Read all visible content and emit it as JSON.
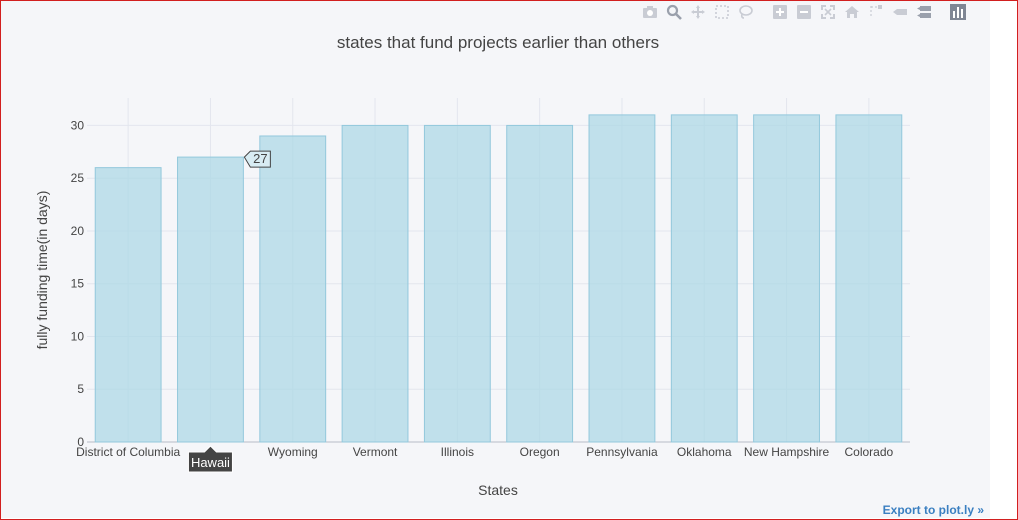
{
  "modebar": {
    "icons": [
      "camera-icon",
      "zoom-icon",
      "pan-icon",
      "box-select-icon",
      "lasso-select-icon",
      "zoom-in-icon",
      "zoom-out-icon",
      "autoscale-icon",
      "reset-axes-icon",
      "spike-lines-icon",
      "hover-closest-icon",
      "hover-compare-icon",
      "plotly-logo-icon"
    ]
  },
  "export_link": "Export to plot.ly »",
  "colors": {
    "bar_fill": "#add8e6",
    "bar_stroke": "#93c8dc",
    "grid": "#e3e6ee",
    "axis_text": "#444444",
    "tooltip_bg": "#444444",
    "plot_bg": "#f5f6f9"
  },
  "chart_data": {
    "type": "bar",
    "title": "states that fund projects earlier than others",
    "xlabel": "States",
    "ylabel": "fully funding time(in days)",
    "categories": [
      "District of Columbia",
      "Hawaii",
      "Wyoming",
      "Vermont",
      "Illinois",
      "Oregon",
      "Pennsylvania",
      "Oklahoma",
      "New Hampshire",
      "Colorado"
    ],
    "values": [
      26,
      27,
      29,
      30,
      30,
      30,
      31,
      31,
      31,
      31
    ],
    "ylim": [
      0,
      32.6
    ],
    "yticks": [
      0,
      5,
      10,
      15,
      20,
      25,
      30
    ],
    "grid": true,
    "hover": {
      "category": "Hawaii",
      "value_label": "27",
      "category_label": "Hawaii"
    }
  }
}
